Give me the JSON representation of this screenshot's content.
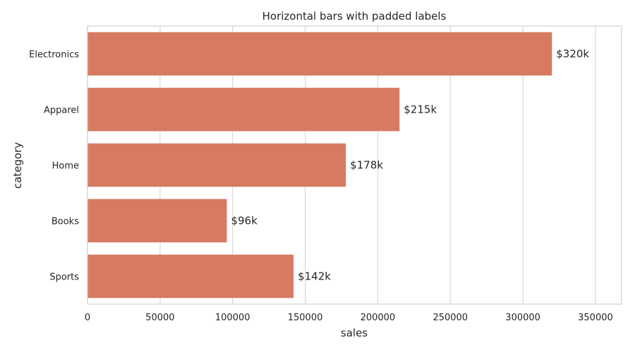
{
  "chart_data": {
    "type": "bar",
    "orientation": "horizontal",
    "title": "Horizontal bars with padded labels",
    "xlabel": "sales",
    "ylabel": "category",
    "categories": [
      "Electronics",
      "Apparel",
      "Home",
      "Books",
      "Sports"
    ],
    "values": [
      320000,
      215000,
      178000,
      96000,
      142000
    ],
    "data_labels": [
      "$320k",
      "$215k",
      "$178k",
      "$96k",
      "$142k"
    ],
    "xlim": [
      0,
      368000
    ],
    "xticks": [
      0,
      50000,
      100000,
      150000,
      200000,
      250000,
      300000,
      350000
    ],
    "xtick_labels": [
      "0",
      "50000",
      "100000",
      "150000",
      "200000",
      "250000",
      "300000",
      "350000"
    ],
    "grid": "vertical",
    "bar_color": "#d67a62",
    "grid_color": "#d9d9d9"
  }
}
